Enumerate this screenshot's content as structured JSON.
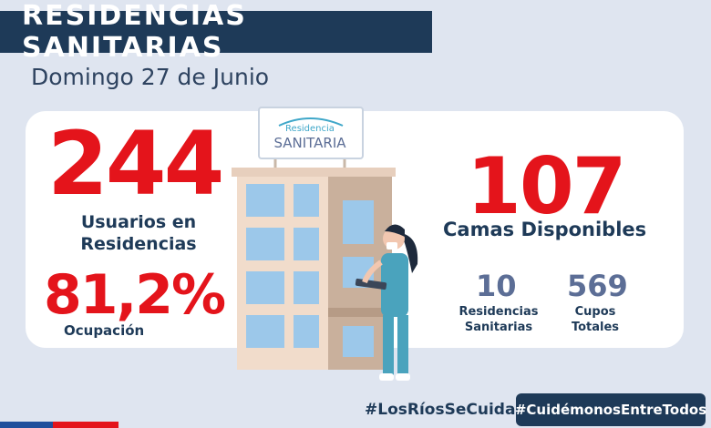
{
  "header": {
    "title": "RESIDENCIAS SANITARIAS",
    "date": "Domingo 27 de Junio"
  },
  "stats": {
    "usuarios": {
      "value": "244",
      "label_line1": "Usuarios en",
      "label_line2": "Residencias"
    },
    "ocupacion": {
      "value": "81,2%",
      "label": "Ocupación"
    },
    "camas": {
      "value": "107",
      "label": "Camas Disponibles"
    },
    "residencias": {
      "value": "10",
      "label_line1": "Residencias",
      "label_line2": "Sanitarias"
    },
    "cupos": {
      "value": "569",
      "label_line1": "Cupos",
      "label_line2": "Totales"
    }
  },
  "sign": {
    "line1": "Residencia",
    "line2": "SANITARIA"
  },
  "footer": {
    "hashtag_left": "#LosRíosSeCuida",
    "hashtag_right": "#CuidémonosEntreTodos"
  },
  "colors": {
    "navy": "#1e3a58",
    "red": "#e4141b",
    "background": "#dfe5f0",
    "slate": "#5c6e96"
  },
  "icons": [
    "building-illustration",
    "nurse-illustration"
  ]
}
